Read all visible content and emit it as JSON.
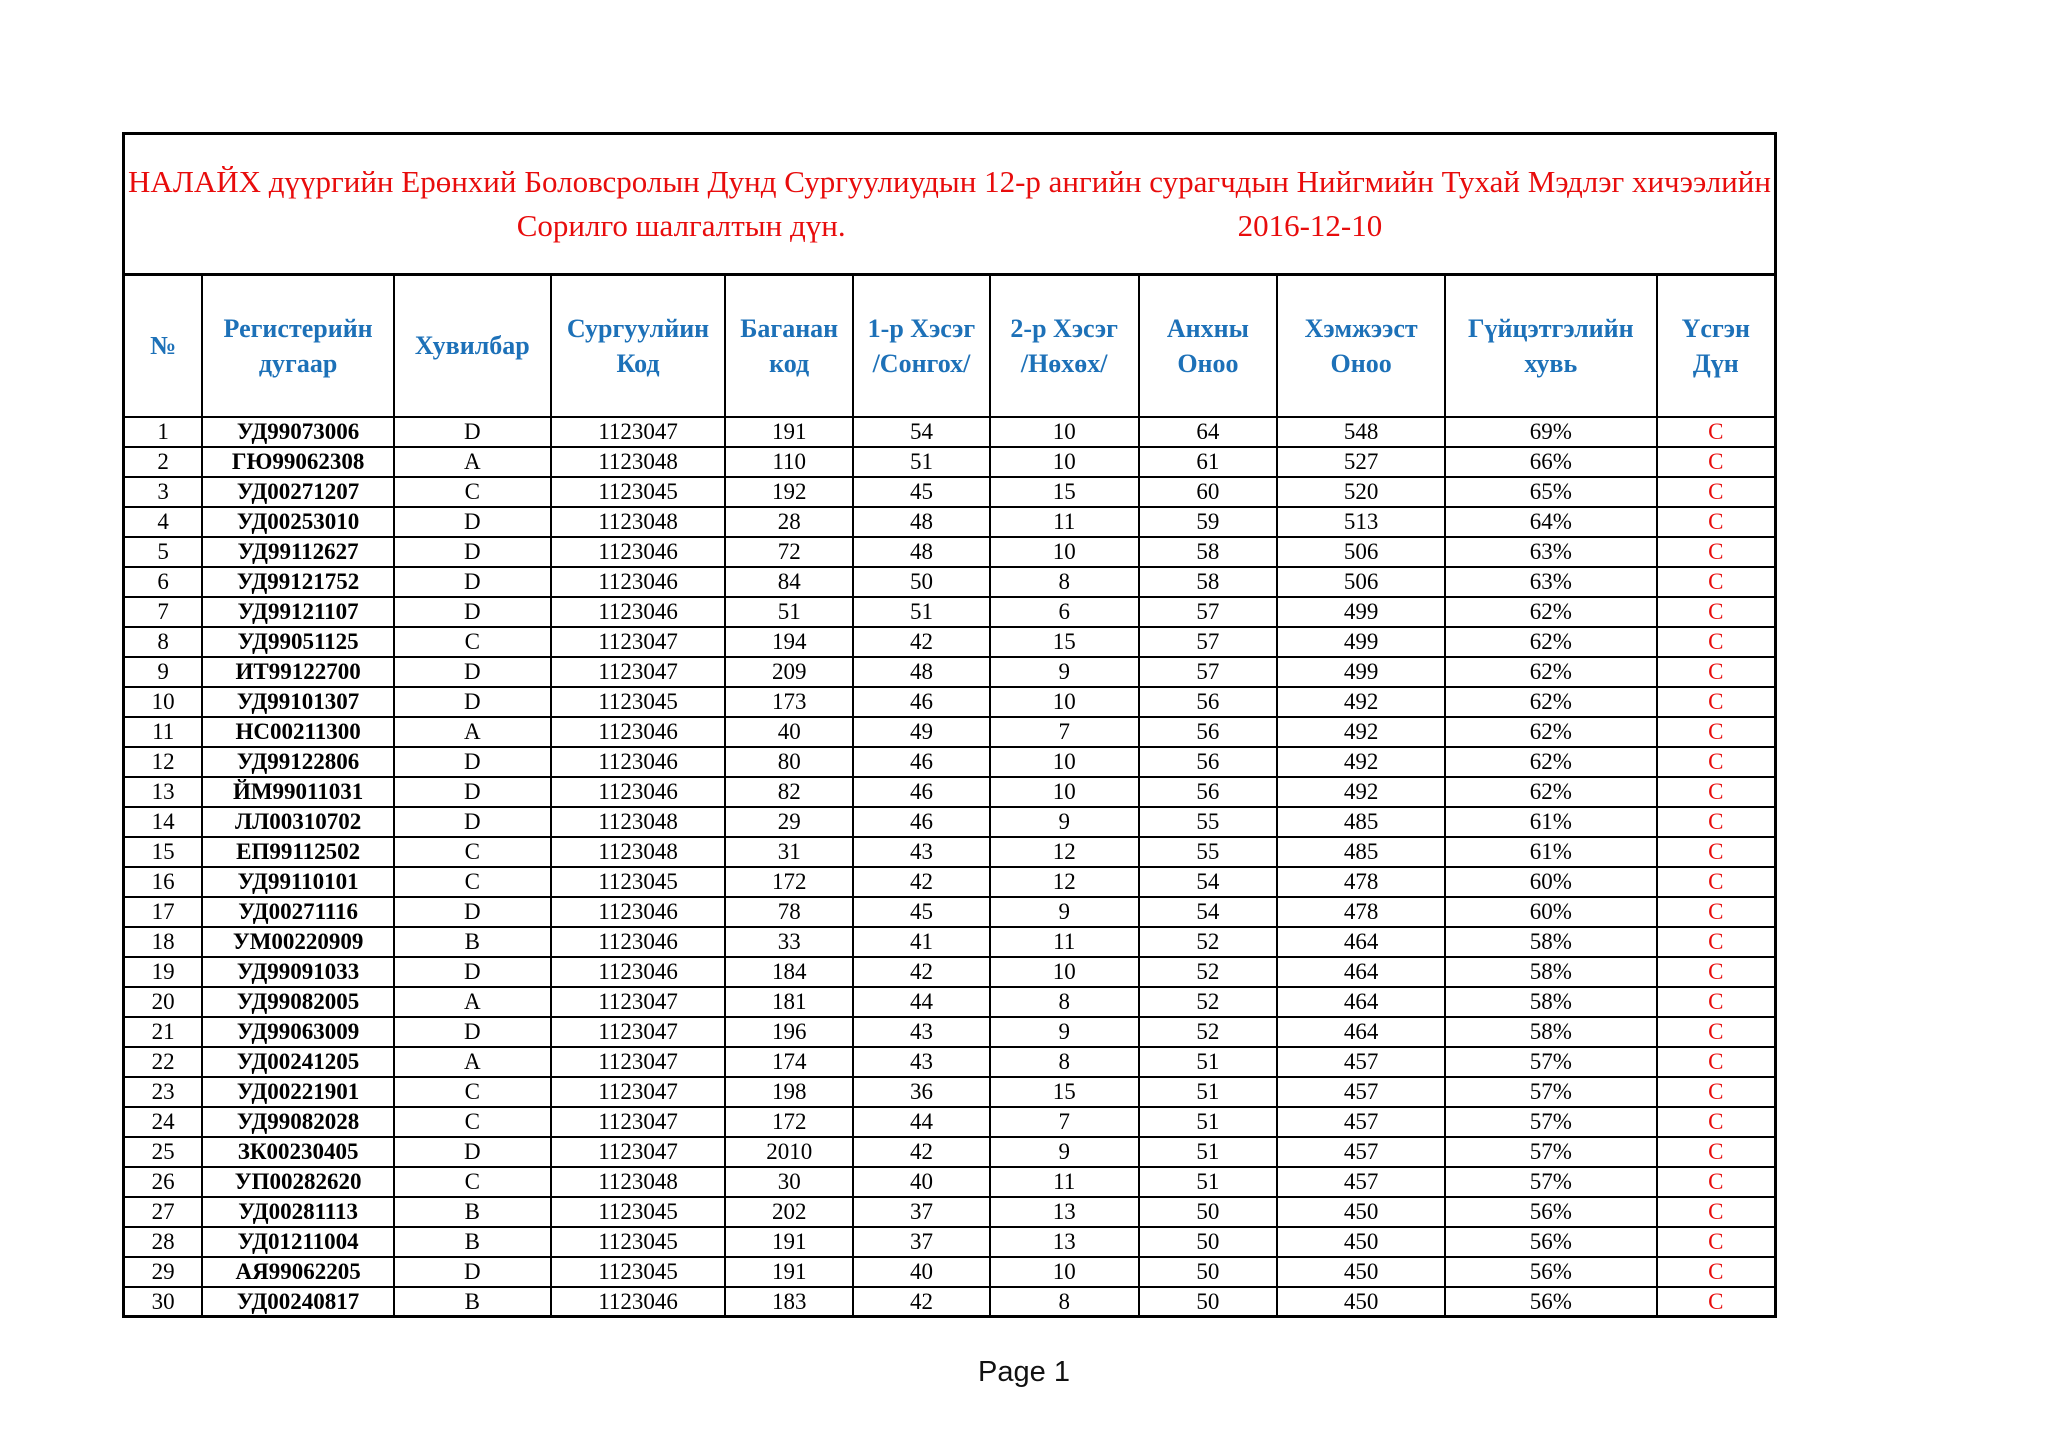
{
  "title": {
    "line1": "НАЛАЙХ дүүргийн Ерөнхий Боловсролын Дунд Сургуулиудын 12-р ангийн сурагчдын Нийгмийн Тухай Мэдлэг  хичээлийн",
    "line2_left": "Сорилго шалгалтын дүн.",
    "date": "2016-12-10"
  },
  "colors": {
    "title_red": "#e80c0c",
    "header_blue": "#1d71b8",
    "grade_red": "#e80c0c",
    "text_black": "#000000",
    "border_black": "#000000"
  },
  "table": {
    "headers": [
      "№",
      "Регистерийн\nдугаар",
      "Хувилбар",
      "Сургуулйин\nКод",
      "Баганан\nкод",
      "1-р Хэсэг\n/Сонгох/",
      "2-р Хэсэг\n/Нөхөх/",
      "Анхны\nОноо",
      "Хэмжээст\nОноо",
      "Гүйцэтгэлийн\nхувь",
      "Үсгэн Дүн"
    ],
    "rows": [
      [
        "1",
        "УД99073006",
        "D",
        "1123047",
        "191",
        "54",
        "10",
        "64",
        "548",
        "69%",
        "C"
      ],
      [
        "2",
        "ГЮ99062308",
        "A",
        "1123048",
        "110",
        "51",
        "10",
        "61",
        "527",
        "66%",
        "C"
      ],
      [
        "3",
        "УД00271207",
        "C",
        "1123045",
        "192",
        "45",
        "15",
        "60",
        "520",
        "65%",
        "C"
      ],
      [
        "4",
        "УД00253010",
        "D",
        "1123048",
        "28",
        "48",
        "11",
        "59",
        "513",
        "64%",
        "C"
      ],
      [
        "5",
        "УД99112627",
        "D",
        "1123046",
        "72",
        "48",
        "10",
        "58",
        "506",
        "63%",
        "C"
      ],
      [
        "6",
        "УД99121752",
        "D",
        "1123046",
        "84",
        "50",
        "8",
        "58",
        "506",
        "63%",
        "C"
      ],
      [
        "7",
        "УД99121107",
        "D",
        "1123046",
        "51",
        "51",
        "6",
        "57",
        "499",
        "62%",
        "C"
      ],
      [
        "8",
        "УД99051125",
        "C",
        "1123047",
        "194",
        "42",
        "15",
        "57",
        "499",
        "62%",
        "C"
      ],
      [
        "9",
        "ИТ99122700",
        "D",
        "1123047",
        "209",
        "48",
        "9",
        "57",
        "499",
        "62%",
        "C"
      ],
      [
        "10",
        "УД99101307",
        "D",
        "1123045",
        "173",
        "46",
        "10",
        "56",
        "492",
        "62%",
        "C"
      ],
      [
        "11",
        "НС00211300",
        "A",
        "1123046",
        "40",
        "49",
        "7",
        "56",
        "492",
        "62%",
        "C"
      ],
      [
        "12",
        "УД99122806",
        "D",
        "1123046",
        "80",
        "46",
        "10",
        "56",
        "492",
        "62%",
        "C"
      ],
      [
        "13",
        "ЙМ99011031",
        "D",
        "1123046",
        "82",
        "46",
        "10",
        "56",
        "492",
        "62%",
        "C"
      ],
      [
        "14",
        "ЛЛ00310702",
        "D",
        "1123048",
        "29",
        "46",
        "9",
        "55",
        "485",
        "61%",
        "C"
      ],
      [
        "15",
        "ЕП99112502",
        "C",
        "1123048",
        "31",
        "43",
        "12",
        "55",
        "485",
        "61%",
        "C"
      ],
      [
        "16",
        "УД99110101",
        "C",
        "1123045",
        "172",
        "42",
        "12",
        "54",
        "478",
        "60%",
        "C"
      ],
      [
        "17",
        "УД00271116",
        "D",
        "1123046",
        "78",
        "45",
        "9",
        "54",
        "478",
        "60%",
        "C"
      ],
      [
        "18",
        "УМ00220909",
        "B",
        "1123046",
        "33",
        "41",
        "11",
        "52",
        "464",
        "58%",
        "C"
      ],
      [
        "19",
        "УД99091033",
        "D",
        "1123046",
        "184",
        "42",
        "10",
        "52",
        "464",
        "58%",
        "C"
      ],
      [
        "20",
        "УД99082005",
        "A",
        "1123047",
        "181",
        "44",
        "8",
        "52",
        "464",
        "58%",
        "C"
      ],
      [
        "21",
        "УД99063009",
        "D",
        "1123047",
        "196",
        "43",
        "9",
        "52",
        "464",
        "58%",
        "C"
      ],
      [
        "22",
        "УД00241205",
        "A",
        "1123047",
        "174",
        "43",
        "8",
        "51",
        "457",
        "57%",
        "C"
      ],
      [
        "23",
        "УД00221901",
        "C",
        "1123047",
        "198",
        "36",
        "15",
        "51",
        "457",
        "57%",
        "C"
      ],
      [
        "24",
        "УД99082028",
        "C",
        "1123047",
        "172",
        "44",
        "7",
        "51",
        "457",
        "57%",
        "C"
      ],
      [
        "25",
        "ЗК00230405",
        "D",
        "1123047",
        "2010",
        "42",
        "9",
        "51",
        "457",
        "57%",
        "C"
      ],
      [
        "26",
        "УП00282620",
        "C",
        "1123048",
        "30",
        "40",
        "11",
        "51",
        "457",
        "57%",
        "C"
      ],
      [
        "27",
        "УД00281113",
        "B",
        "1123045",
        "202",
        "37",
        "13",
        "50",
        "450",
        "56%",
        "C"
      ],
      [
        "28",
        "УД01211004",
        "B",
        "1123045",
        "191",
        "37",
        "13",
        "50",
        "450",
        "56%",
        "C"
      ],
      [
        "29",
        "АЯ99062205",
        "D",
        "1123045",
        "191",
        "40",
        "10",
        "50",
        "450",
        "56%",
        "C"
      ],
      [
        "30",
        "УД00240817",
        "B",
        "1123046",
        "183",
        "42",
        "8",
        "50",
        "450",
        "56%",
        "C"
      ]
    ]
  },
  "footer": {
    "page_label": "Page 1"
  }
}
